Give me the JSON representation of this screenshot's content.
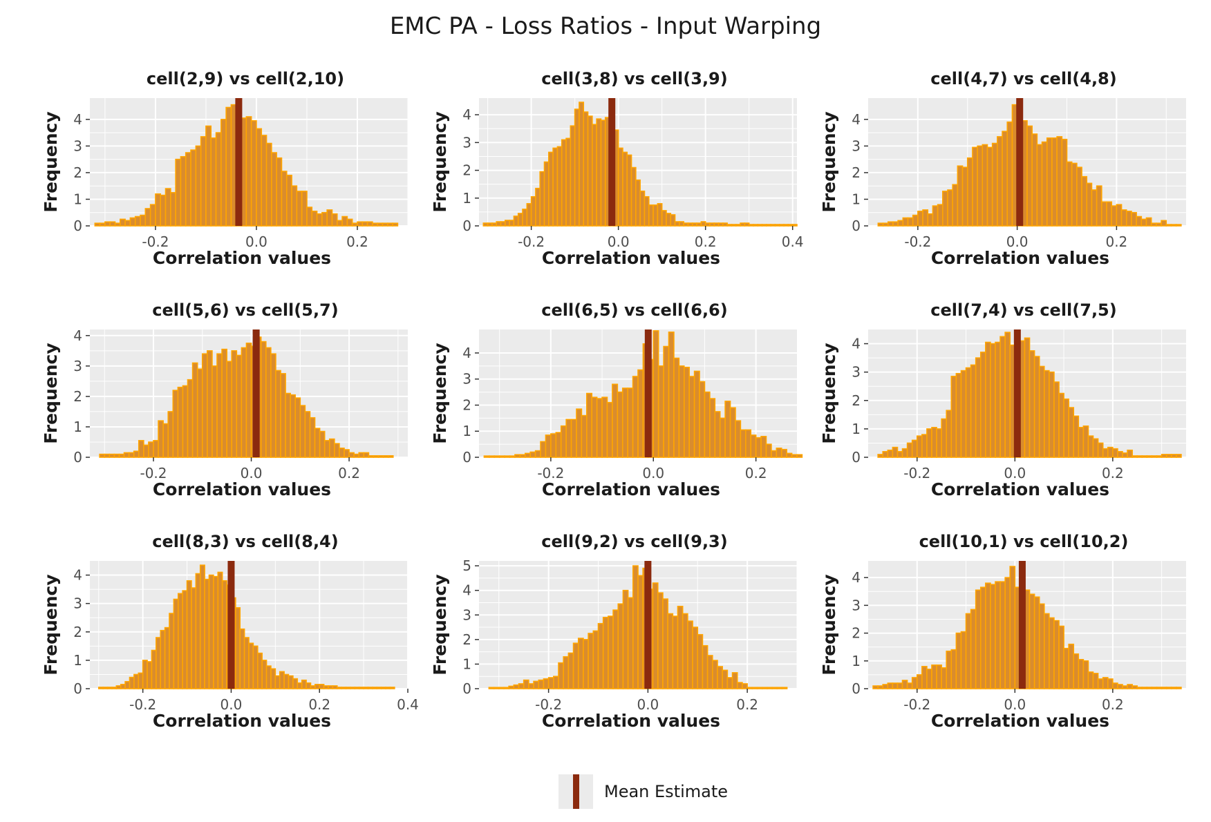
{
  "title": "EMC PA - Loss Ratios - Input Warping",
  "legend": {
    "label": "Mean Estimate",
    "color": "#8b2a0e"
  },
  "colors": {
    "bar_fill": "#d98c2e",
    "bar_outline": "#ffa500",
    "mean_line": "#8b2a0e",
    "panel_bg": "#ebebeb",
    "grid": "#ffffff"
  },
  "chart_data": [
    {
      "type": "bar",
      "title": "cell(2,9) vs cell(2,10)",
      "xlabel": "Correlation values",
      "ylabel": "Frequency",
      "xlim": [
        -0.33,
        0.3
      ],
      "ylim": [
        0,
        4.8
      ],
      "xticks": [
        -0.2,
        0.0,
        0.2
      ],
      "yticks": [
        0,
        1,
        2,
        3,
        4
      ],
      "bin_start": -0.32,
      "bin_width": 0.01,
      "values": [
        0.1,
        0.1,
        0.15,
        0.15,
        0.1,
        0.25,
        0.2,
        0.3,
        0.35,
        0.4,
        0.65,
        0.8,
        1.2,
        1.15,
        1.4,
        1.25,
        2.5,
        2.6,
        2.75,
        2.85,
        3.0,
        3.35,
        3.75,
        3.3,
        3.5,
        4.0,
        4.45,
        4.55,
        4.0,
        4.05,
        4.1,
        3.95,
        3.65,
        3.4,
        3.1,
        2.75,
        2.55,
        2.05,
        1.9,
        1.5,
        1.3,
        1.3,
        0.7,
        0.55,
        0.45,
        0.5,
        0.6,
        0.45,
        0.2,
        0.35,
        0.25,
        0.1,
        0.15,
        0.15,
        0.15,
        0.1,
        0.1,
        0.1,
        0.1,
        0.1
      ],
      "mean": -0.035
    },
    {
      "type": "bar",
      "title": "cell(3,8) vs cell(3,9)",
      "xlabel": "Correlation values",
      "ylabel": "Frequency",
      "xlim": [
        -0.32,
        0.41
      ],
      "ylim": [
        0,
        4.6
      ],
      "xticks": [
        -0.2,
        0.0,
        0.2,
        0.4
      ],
      "yticks": [
        0,
        1,
        2,
        3,
        4
      ],
      "bin_start": -0.31,
      "bin_width": 0.01,
      "values": [
        0.1,
        0.1,
        0.1,
        0.15,
        0.15,
        0.2,
        0.2,
        0.35,
        0.45,
        0.6,
        0.8,
        1.05,
        1.35,
        1.95,
        2.3,
        2.65,
        2.8,
        2.85,
        3.1,
        3.15,
        3.6,
        4.2,
        4.45,
        4.1,
        3.95,
        3.65,
        3.85,
        3.8,
        3.9,
        3.85,
        3.45,
        2.8,
        2.65,
        2.55,
        2.1,
        1.65,
        1.25,
        1.05,
        0.75,
        0.75,
        0.8,
        0.55,
        0.45,
        0.4,
        0.15,
        0.15,
        0.1,
        0.1,
        0.1,
        0.1,
        0.15,
        0.1,
        0.1,
        0.1,
        0.1,
        0.1,
        0.05,
        0.05,
        0.05,
        0.1,
        0.1,
        0.05,
        0.05,
        0.05,
        0.05,
        0.05,
        0.05,
        0.05,
        0.05,
        0.05,
        0.05,
        0.05
      ],
      "mean": -0.015
    },
    {
      "type": "bar",
      "title": "cell(4,7) vs cell(4,8)",
      "xlabel": "Correlation values",
      "ylabel": "Frequency",
      "xlim": [
        -0.3,
        0.34
      ],
      "ylim": [
        0,
        4.8
      ],
      "xticks": [
        -0.2,
        0.0,
        0.2
      ],
      "yticks": [
        0,
        1,
        2,
        3,
        4
      ],
      "bin_start": -0.28,
      "bin_width": 0.01,
      "values": [
        0.1,
        0.1,
        0.15,
        0.15,
        0.2,
        0.3,
        0.3,
        0.4,
        0.55,
        0.6,
        0.45,
        0.75,
        0.8,
        1.3,
        1.35,
        1.55,
        2.25,
        2.2,
        2.55,
        2.95,
        3.0,
        3.05,
        2.95,
        3.1,
        3.35,
        3.55,
        3.9,
        4.55,
        4.05,
        3.95,
        3.75,
        3.45,
        3.05,
        3.15,
        3.3,
        3.3,
        3.35,
        3.25,
        2.4,
        2.35,
        2.2,
        1.85,
        1.6,
        1.35,
        1.5,
        0.9,
        0.9,
        0.75,
        0.8,
        0.6,
        0.55,
        0.5,
        0.35,
        0.25,
        0.3,
        0.1,
        0.1,
        0.2,
        0.05,
        0.05,
        0.05
      ],
      "mean": 0.005
    },
    {
      "type": "bar",
      "title": "cell(5,6) vs cell(5,7)",
      "xlabel": "Correlation values",
      "ylabel": "Frequency",
      "xlim": [
        -0.33,
        0.32
      ],
      "ylim": [
        0,
        4.2
      ],
      "xticks": [
        -0.2,
        0.0,
        0.2
      ],
      "yticks": [
        0,
        1,
        2,
        3,
        4
      ],
      "bin_start": -0.31,
      "bin_width": 0.01,
      "values": [
        0.1,
        0.1,
        0.1,
        0.1,
        0.1,
        0.15,
        0.15,
        0.2,
        0.55,
        0.4,
        0.5,
        0.55,
        1.2,
        1.1,
        1.5,
        2.2,
        2.3,
        2.35,
        2.55,
        3.1,
        2.9,
        3.4,
        3.5,
        3.0,
        3.4,
        3.55,
        3.15,
        3.5,
        3.35,
        3.6,
        3.75,
        3.65,
        3.95,
        3.8,
        3.6,
        3.4,
        2.85,
        2.75,
        2.1,
        2.05,
        1.95,
        1.7,
        1.5,
        1.3,
        0.95,
        0.85,
        0.55,
        0.6,
        0.45,
        0.3,
        0.25,
        0.15,
        0.1,
        0.15,
        0.15,
        0.05,
        0.05,
        0.05,
        0.05,
        0.05
      ],
      "mean": 0.01
    },
    {
      "type": "bar",
      "title": "cell(6,5) vs cell(6,6)",
      "xlabel": "Correlation values",
      "ylabel": "Frequency",
      "xlim": [
        -0.34,
        0.28
      ],
      "ylim": [
        0,
        4.9
      ],
      "xticks": [
        -0.2,
        0.0,
        0.2
      ],
      "yticks": [
        0,
        1,
        2,
        3,
        4
      ],
      "bin_start": -0.33,
      "bin_width": 0.01,
      "values": [
        0.05,
        0.05,
        0.05,
        0.05,
        0.05,
        0.05,
        0.1,
        0.1,
        0.15,
        0.2,
        0.25,
        0.6,
        0.85,
        0.9,
        0.95,
        1.2,
        1.45,
        1.45,
        1.85,
        1.6,
        2.45,
        2.3,
        2.25,
        2.3,
        2.1,
        2.8,
        2.5,
        2.65,
        2.65,
        3.1,
        3.35,
        4.35,
        3.75,
        4.85,
        3.5,
        4.25,
        4.8,
        3.8,
        3.5,
        3.45,
        3.1,
        3.3,
        2.9,
        2.5,
        2.25,
        1.75,
        1.5,
        2.15,
        1.9,
        1.4,
        1.05,
        1.05,
        0.85,
        0.75,
        0.8,
        0.5,
        0.25,
        0.35,
        0.3,
        0.15,
        0.1,
        0.1
      ],
      "mean": -0.01
    },
    {
      "type": "bar",
      "title": "cell(7,4) vs cell(7,5)",
      "xlabel": "Correlation values",
      "ylabel": "Frequency",
      "xlim": [
        -0.3,
        0.35
      ],
      "ylim": [
        0,
        4.5
      ],
      "xticks": [
        -0.2,
        0.0,
        0.2
      ],
      "yticks": [
        0,
        1,
        2,
        3,
        4
      ],
      "bin_start": -0.28,
      "bin_width": 0.01,
      "values": [
        0.1,
        0.2,
        0.25,
        0.35,
        0.2,
        0.3,
        0.5,
        0.6,
        0.75,
        0.8,
        1.0,
        1.05,
        1.0,
        1.35,
        1.65,
        2.85,
        2.95,
        3.05,
        3.15,
        3.25,
        3.5,
        3.7,
        4.05,
        4.0,
        4.05,
        4.25,
        4.4,
        3.95,
        3.95,
        4.1,
        4.2,
        3.75,
        3.55,
        3.2,
        3.05,
        3.0,
        2.65,
        2.25,
        2.05,
        1.75,
        1.45,
        1.05,
        1.1,
        0.75,
        0.65,
        0.5,
        0.3,
        0.35,
        0.3,
        0.2,
        0.15,
        0.25,
        0.05,
        0.05,
        0.05,
        0.05,
        0.05,
        0.05,
        0.1,
        0.1,
        0.1,
        0.1
      ],
      "mean": 0.005
    },
    {
      "type": "bar",
      "title": "cell(8,3) vs cell(8,4)",
      "xlabel": "Correlation values",
      "ylabel": "Frequency",
      "xlim": [
        -0.32,
        0.4
      ],
      "ylim": [
        0,
        4.5
      ],
      "xticks": [
        -0.2,
        0.0,
        0.2,
        0.4
      ],
      "yticks": [
        0,
        1,
        2,
        3,
        4
      ],
      "bin_start": -0.3,
      "bin_width": 0.01,
      "values": [
        0.05,
        0.05,
        0.05,
        0.05,
        0.1,
        0.15,
        0.25,
        0.4,
        0.5,
        0.55,
        1.0,
        0.95,
        1.35,
        1.8,
        2.05,
        2.15,
        2.65,
        3.15,
        3.35,
        3.45,
        3.8,
        3.55,
        4.05,
        4.35,
        3.85,
        4.0,
        3.95,
        4.1,
        3.8,
        3.65,
        3.2,
        2.85,
        2.1,
        1.8,
        1.6,
        1.5,
        1.25,
        1.0,
        0.8,
        0.7,
        0.45,
        0.6,
        0.5,
        0.45,
        0.35,
        0.2,
        0.3,
        0.2,
        0.1,
        0.15,
        0.15,
        0.1,
        0.1,
        0.1,
        0.05,
        0.05,
        0.05,
        0.05,
        0.05,
        0.05,
        0.05,
        0.05,
        0.05,
        0.05,
        0.05,
        0.05,
        0.05
      ],
      "mean": 0.0
    },
    {
      "type": "bar",
      "title": "cell(9,2) vs cell(9,3)",
      "xlabel": "Correlation values",
      "ylabel": "Frequency",
      "xlim": [
        -0.34,
        0.3
      ],
      "ylim": [
        0,
        5.2
      ],
      "xticks": [
        -0.2,
        0.0,
        0.2
      ],
      "yticks": [
        0,
        1,
        2,
        3,
        4,
        5
      ],
      "bin_start": -0.32,
      "bin_width": 0.01,
      "values": [
        0.05,
        0.05,
        0.05,
        0.05,
        0.1,
        0.15,
        0.2,
        0.35,
        0.2,
        0.3,
        0.35,
        0.4,
        0.45,
        0.5,
        1.05,
        1.3,
        1.45,
        1.85,
        2.05,
        2.0,
        2.25,
        2.35,
        2.65,
        2.9,
        2.95,
        3.2,
        3.45,
        4.0,
        3.7,
        5.0,
        4.6,
        4.9,
        4.05,
        4.3,
        3.9,
        3.65,
        3.05,
        2.95,
        3.35,
        3.05,
        2.75,
        2.5,
        2.2,
        1.75,
        1.35,
        1.15,
        0.9,
        0.75,
        0.45,
        0.65,
        0.25,
        0.2,
        0.05,
        0.05,
        0.05,
        0.05,
        0.05,
        0.05,
        0.05,
        0.05
      ],
      "mean": 0.0
    },
    {
      "type": "bar",
      "title": "cell(10,1) vs cell(10,2)",
      "xlabel": "Correlation values",
      "ylabel": "Frequency",
      "xlim": [
        -0.3,
        0.35
      ],
      "ylim": [
        0,
        4.6
      ],
      "xticks": [
        -0.2,
        0.0,
        0.2
      ],
      "yticks": [
        0,
        1,
        2,
        3,
        4
      ],
      "bin_start": -0.29,
      "bin_width": 0.01,
      "values": [
        0.1,
        0.1,
        0.15,
        0.2,
        0.2,
        0.2,
        0.3,
        0.2,
        0.4,
        0.5,
        0.8,
        0.7,
        0.85,
        0.85,
        0.75,
        1.35,
        1.4,
        2.0,
        2.05,
        2.7,
        2.85,
        3.55,
        3.65,
        3.8,
        3.75,
        3.85,
        3.85,
        4.0,
        4.4,
        3.65,
        3.9,
        3.55,
        3.4,
        3.3,
        3.05,
        2.7,
        2.55,
        2.45,
        2.25,
        1.45,
        1.6,
        1.25,
        1.05,
        1.0,
        0.6,
        0.55,
        0.35,
        0.4,
        0.35,
        0.2,
        0.15,
        0.1,
        0.15,
        0.1,
        0.05,
        0.05,
        0.05,
        0.05,
        0.05,
        0.05,
        0.05,
        0.05,
        0.05
      ],
      "mean": 0.015
    }
  ]
}
